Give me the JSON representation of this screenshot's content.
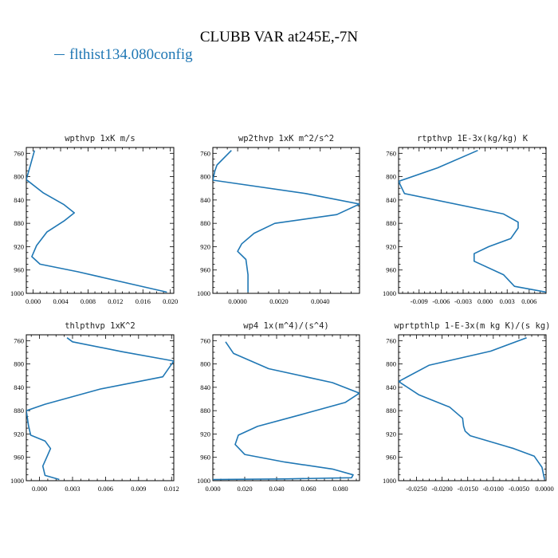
{
  "title": "CLUBB VAR at245E,-7N",
  "legend": {
    "label": "flthist134.080config",
    "color": "#1f77b4"
  },
  "chart_data": [
    {
      "type": "line",
      "title": "wpthvp   1xK m/s",
      "xlim": [
        -0.001,
        0.0205
      ],
      "ylim": [
        1000,
        750
      ],
      "xticks": [
        "0.000",
        "0.004",
        "0.008",
        "0.012",
        "0.016",
        "0.020"
      ],
      "xtick_values": [
        0,
        0.004,
        0.008,
        0.012,
        0.016,
        0.02
      ],
      "yticks": [
        "760",
        "800",
        "840",
        "880",
        "920",
        "960",
        "1000"
      ],
      "series": [
        {
          "x": [
            0.0002,
            -0.0004,
            -0.001,
            0.0015,
            0.0045,
            0.006,
            0.0045,
            0.002,
            0.0005,
            -0.0002,
            0.001,
            0.0065,
            0.0195
          ],
          "y": [
            755,
            780,
            805,
            828,
            848,
            862,
            876,
            895,
            918,
            937,
            950,
            963,
            998
          ]
        }
      ]
    },
    {
      "type": "line",
      "title": "wp2thvp   1xK m^2/s^2",
      "xlim": [
        -0.0012,
        0.0059
      ],
      "ylim": [
        1000,
        750
      ],
      "xticks": [
        "0.0000",
        "0.0020",
        "0.0040"
      ],
      "xtick_values": [
        0,
        0.002,
        0.004
      ],
      "yticks": [
        "760",
        "800",
        "840",
        "880",
        "920",
        "960",
        "1000"
      ],
      "series": [
        {
          "x": [
            -0.0003,
            -0.001,
            -0.0011,
            -0.0012,
            0.0033,
            0.0059,
            0.0048,
            0.0018,
            0.0008,
            0.0002,
            0.0,
            0.0004,
            0.0005,
            0.0005
          ],
          "y": [
            755,
            780,
            790,
            806,
            829,
            847,
            865,
            880,
            897,
            915,
            928,
            942,
            968,
            998
          ]
        }
      ]
    },
    {
      "type": "line",
      "title": "rtpthvp   1E-3x(kg/kg) K",
      "xlim": [
        -0.0118,
        0.0083
      ],
      "ylim": [
        1000,
        750
      ],
      "xticks": [
        "-0.009",
        "-0.006",
        "-0.003",
        "0.000",
        "0.003",
        "0.006"
      ],
      "xtick_values": [
        -0.009,
        -0.006,
        -0.003,
        0,
        0.003,
        0.006
      ],
      "yticks": [
        "760",
        "800",
        "840",
        "880",
        "920",
        "960",
        "1000"
      ],
      "series": [
        {
          "x": [
            -0.001,
            -0.0065,
            -0.0118,
            -0.011,
            0.0025,
            0.0045,
            0.0045,
            0.0035,
            0.0005,
            -0.0015,
            -0.0015,
            0.0025,
            0.004,
            0.0083
          ],
          "y": [
            755,
            785,
            808,
            829,
            864,
            878,
            888,
            906,
            920,
            932,
            945,
            968,
            988,
            998
          ]
        }
      ]
    },
    {
      "type": "line",
      "title": "thlpthvp   1xK^2",
      "xlim": [
        -0.0012,
        0.0122
      ],
      "ylim": [
        1000,
        750
      ],
      "xticks": [
        "0.000",
        "0.003",
        "0.006",
        "0.009",
        "0.012"
      ],
      "xtick_values": [
        0,
        0.003,
        0.006,
        0.009,
        0.012
      ],
      "yticks": [
        "760",
        "800",
        "840",
        "880",
        "920",
        "960",
        "1000"
      ],
      "series": [
        {
          "x": [
            0.0025,
            0.003,
            0.0075,
            0.0122,
            0.0112,
            0.0055,
            0.0005,
            -0.0012,
            -0.001,
            -0.0008,
            0.0005,
            0.001,
            0.0007,
            0.0003,
            0.0005,
            0.0018
          ],
          "y": [
            755,
            762,
            779,
            795,
            822,
            843,
            869,
            880,
            906,
            922,
            932,
            945,
            958,
            975,
            991,
            998
          ]
        }
      ]
    },
    {
      "type": "line",
      "title": "wp4   1x(m^4)/(s^4)",
      "xlim": [
        0.0,
        0.092
      ],
      "ylim": [
        1000,
        750
      ],
      "xticks": [
        "0.000",
        "0.020",
        "0.040",
        "0.060",
        "0.080"
      ],
      "xtick_values": [
        0,
        0.02,
        0.04,
        0.06,
        0.08
      ],
      "yticks": [
        "760",
        "800",
        "840",
        "880",
        "920",
        "960",
        "1000"
      ],
      "series": [
        {
          "x": [
            0.008,
            0.013,
            0.035,
            0.075,
            0.092,
            0.083,
            0.055,
            0.028,
            0.016,
            0.014,
            0.02,
            0.045,
            0.075,
            0.088,
            0.087,
            0.045,
            0.0
          ],
          "y": [
            762,
            782,
            808,
            832,
            850,
            866,
            887,
            907,
            922,
            938,
            955,
            968,
            980,
            990,
            995,
            997,
            998
          ]
        }
      ]
    },
    {
      "type": "line",
      "title": "wprtpthlp   1-E-3x(m kg K)/(s kg)",
      "xlim": [
        -0.0285,
        0.0003
      ],
      "ylim": [
        1000,
        750
      ],
      "xticks": [
        "-0.0250",
        "-0.0200",
        "-0.0150",
        "-0.0100",
        "-0.0050",
        "0.0000"
      ],
      "xtick_values": [
        -0.025,
        -0.02,
        -0.015,
        -0.01,
        -0.005,
        0
      ],
      "yticks": [
        "760",
        "800",
        "840",
        "880",
        "920",
        "960",
        "1000"
      ],
      "series": [
        {
          "x": [
            -0.0035,
            -0.0105,
            -0.0225,
            -0.0285,
            -0.0245,
            -0.0185,
            -0.016,
            -0.0158,
            -0.0155,
            -0.0145,
            -0.006,
            -0.002,
            -0.0005,
            0.0
          ],
          "y": [
            755,
            778,
            802,
            830,
            853,
            874,
            893,
            907,
            915,
            923,
            945,
            958,
            977,
            998
          ]
        }
      ]
    }
  ]
}
